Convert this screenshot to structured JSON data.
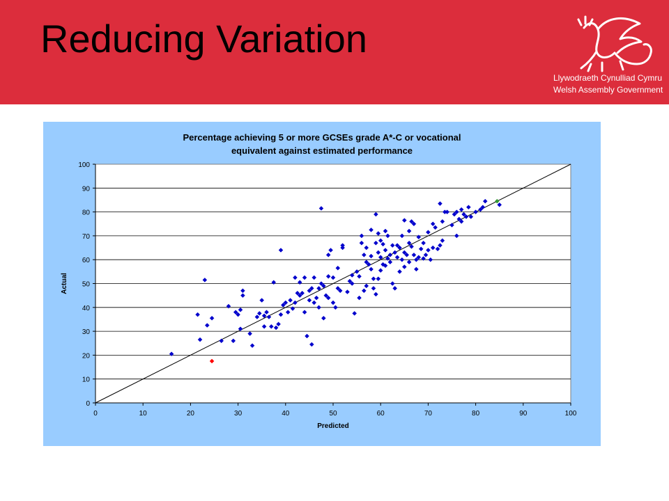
{
  "slide": {
    "title": "Reducing Variation",
    "logo": {
      "name": "welsh-dragon",
      "line1": "Llywodraeth Cynulliad Cymru",
      "line2": "Welsh Assembly Government"
    }
  },
  "colors": {
    "banner": "#dc2d3c",
    "panel": "#99ccff",
    "points": "#0000cc",
    "highlight_low": "#ff0000",
    "highlight_high": "#339933"
  },
  "chart_data": {
    "type": "scatter",
    "title_lines": [
      "Percentage achieving 5 or more GCSEs grade A*-C or vocational",
      "equivalent against estimated performance"
    ],
    "xlabel": "Predicted",
    "ylabel": "Actual",
    "xlim": [
      0,
      100
    ],
    "ylim": [
      0,
      100
    ],
    "xticks": [
      0,
      10,
      20,
      30,
      40,
      50,
      60,
      70,
      80,
      90,
      100
    ],
    "yticks": [
      0,
      10,
      20,
      30,
      40,
      50,
      60,
      70,
      80,
      90,
      100
    ],
    "grid": "horizontal",
    "reference_line": [
      [
        0,
        0
      ],
      [
        100,
        100
      ]
    ],
    "highlighted_points": [
      {
        "x": 24.5,
        "y": 17.5,
        "color": "#ff0000"
      },
      {
        "x": 84.5,
        "y": 84.5,
        "color": "#339933"
      }
    ],
    "points": [
      [
        16,
        20.5
      ],
      [
        21.5,
        37
      ],
      [
        22,
        26.5
      ],
      [
        23,
        51.5
      ],
      [
        23.5,
        32.5
      ],
      [
        24.5,
        35.5
      ],
      [
        26.5,
        26
      ],
      [
        28,
        40.5
      ],
      [
        29,
        26
      ],
      [
        29.5,
        38
      ],
      [
        30,
        37
      ],
      [
        30.5,
        31
      ],
      [
        30.5,
        39
      ],
      [
        31,
        45
      ],
      [
        31,
        47
      ],
      [
        32.5,
        29
      ],
      [
        33,
        24
      ],
      [
        34,
        36
      ],
      [
        34.5,
        37.5
      ],
      [
        35,
        43
      ],
      [
        35.5,
        36.5
      ],
      [
        35.5,
        32
      ],
      [
        36,
        38
      ],
      [
        36.5,
        36
      ],
      [
        37,
        32
      ],
      [
        37.5,
        50.5
      ],
      [
        38,
        31.5
      ],
      [
        38.5,
        33
      ],
      [
        39,
        37
      ],
      [
        39,
        64
      ],
      [
        39.5,
        41
      ],
      [
        40,
        42
      ],
      [
        40.5,
        38
      ],
      [
        41,
        43
      ],
      [
        41.5,
        39.5
      ],
      [
        42,
        42
      ],
      [
        42,
        52.5
      ],
      [
        42.5,
        46
      ],
      [
        43,
        45
      ],
      [
        43,
        50.5
      ],
      [
        43.5,
        46
      ],
      [
        44,
        38
      ],
      [
        44,
        52.5
      ],
      [
        44.5,
        28
      ],
      [
        45,
        43
      ],
      [
        45,
        47
      ],
      [
        45.5,
        24.5
      ],
      [
        45.5,
        48
      ],
      [
        46,
        42
      ],
      [
        46,
        52.5
      ],
      [
        46.5,
        44
      ],
      [
        47,
        48
      ],
      [
        47,
        40
      ],
      [
        47.5,
        81.5
      ],
      [
        47.5,
        50
      ],
      [
        48,
        35.5
      ],
      [
        48,
        49
      ],
      [
        48.5,
        45
      ],
      [
        49,
        53
      ],
      [
        49,
        62
      ],
      [
        49,
        44
      ],
      [
        49.5,
        64
      ],
      [
        50,
        42
      ],
      [
        50,
        52.5
      ],
      [
        50.5,
        40
      ],
      [
        51,
        48
      ],
      [
        51,
        56.5
      ],
      [
        51.5,
        47
      ],
      [
        52,
        65
      ],
      [
        52,
        66
      ],
      [
        53,
        46.5
      ],
      [
        53.5,
        51
      ],
      [
        54,
        53.5
      ],
      [
        54,
        50
      ],
      [
        54.5,
        37.5
      ],
      [
        55,
        55
      ],
      [
        55.5,
        53
      ],
      [
        55.5,
        44
      ],
      [
        56,
        67
      ],
      [
        56,
        70
      ],
      [
        56.5,
        47
      ],
      [
        56.5,
        62
      ],
      [
        57,
        59
      ],
      [
        57,
        65
      ],
      [
        57,
        49
      ],
      [
        57.5,
        58
      ],
      [
        58,
        56
      ],
      [
        58,
        61.5
      ],
      [
        58,
        72.5
      ],
      [
        58.5,
        52
      ],
      [
        58.5,
        48
      ],
      [
        59,
        45.5
      ],
      [
        59,
        67
      ],
      [
        59,
        79
      ],
      [
        59.5,
        63
      ],
      [
        59.5,
        71
      ],
      [
        59.5,
        52
      ],
      [
        60,
        61
      ],
      [
        60,
        68
      ],
      [
        60,
        55.5
      ],
      [
        60.5,
        58
      ],
      [
        60.5,
        66.5
      ],
      [
        61,
        72
      ],
      [
        61,
        57.5
      ],
      [
        61,
        64
      ],
      [
        61.5,
        60.5
      ],
      [
        61.5,
        70
      ],
      [
        62,
        62
      ],
      [
        62,
        59
      ],
      [
        62.5,
        66
      ],
      [
        62.5,
        50
      ],
      [
        63,
        63
      ],
      [
        63,
        48
      ],
      [
        63.5,
        61
      ],
      [
        63.5,
        66
      ],
      [
        64,
        65
      ],
      [
        64,
        55
      ],
      [
        64.5,
        60
      ],
      [
        64.5,
        70
      ],
      [
        65,
        57
      ],
      [
        65,
        76.5
      ],
      [
        65,
        63
      ],
      [
        65.5,
        62
      ],
      [
        66,
        67
      ],
      [
        66,
        59
      ],
      [
        66,
        72
      ],
      [
        66.5,
        76
      ],
      [
        66.5,
        65.5
      ],
      [
        67,
        75
      ],
      [
        67,
        62
      ],
      [
        67.5,
        60
      ],
      [
        67.5,
        56
      ],
      [
        68,
        69.5
      ],
      [
        68,
        61
      ],
      [
        68.5,
        64.5
      ],
      [
        69,
        60.5
      ],
      [
        69,
        67
      ],
      [
        69.5,
        62
      ],
      [
        70,
        71.5
      ],
      [
        70,
        64
      ],
      [
        70.5,
        60
      ],
      [
        71,
        65
      ],
      [
        71,
        75
      ],
      [
        71.5,
        73.5
      ],
      [
        72,
        64.5
      ],
      [
        72.5,
        83.5
      ],
      [
        72.5,
        66
      ],
      [
        73,
        68
      ],
      [
        73,
        76
      ],
      [
        73.5,
        80
      ],
      [
        74,
        80
      ],
      [
        75,
        74.5
      ],
      [
        75.5,
        79
      ],
      [
        76,
        70
      ],
      [
        76,
        80
      ],
      [
        76.5,
        77
      ],
      [
        77,
        76
      ],
      [
        77,
        81
      ],
      [
        77.5,
        79
      ],
      [
        78,
        78
      ],
      [
        78.5,
        82
      ],
      [
        79,
        78
      ],
      [
        80,
        80
      ],
      [
        81,
        81
      ],
      [
        81.5,
        82
      ],
      [
        82,
        84.5
      ],
      [
        85,
        83
      ]
    ]
  }
}
